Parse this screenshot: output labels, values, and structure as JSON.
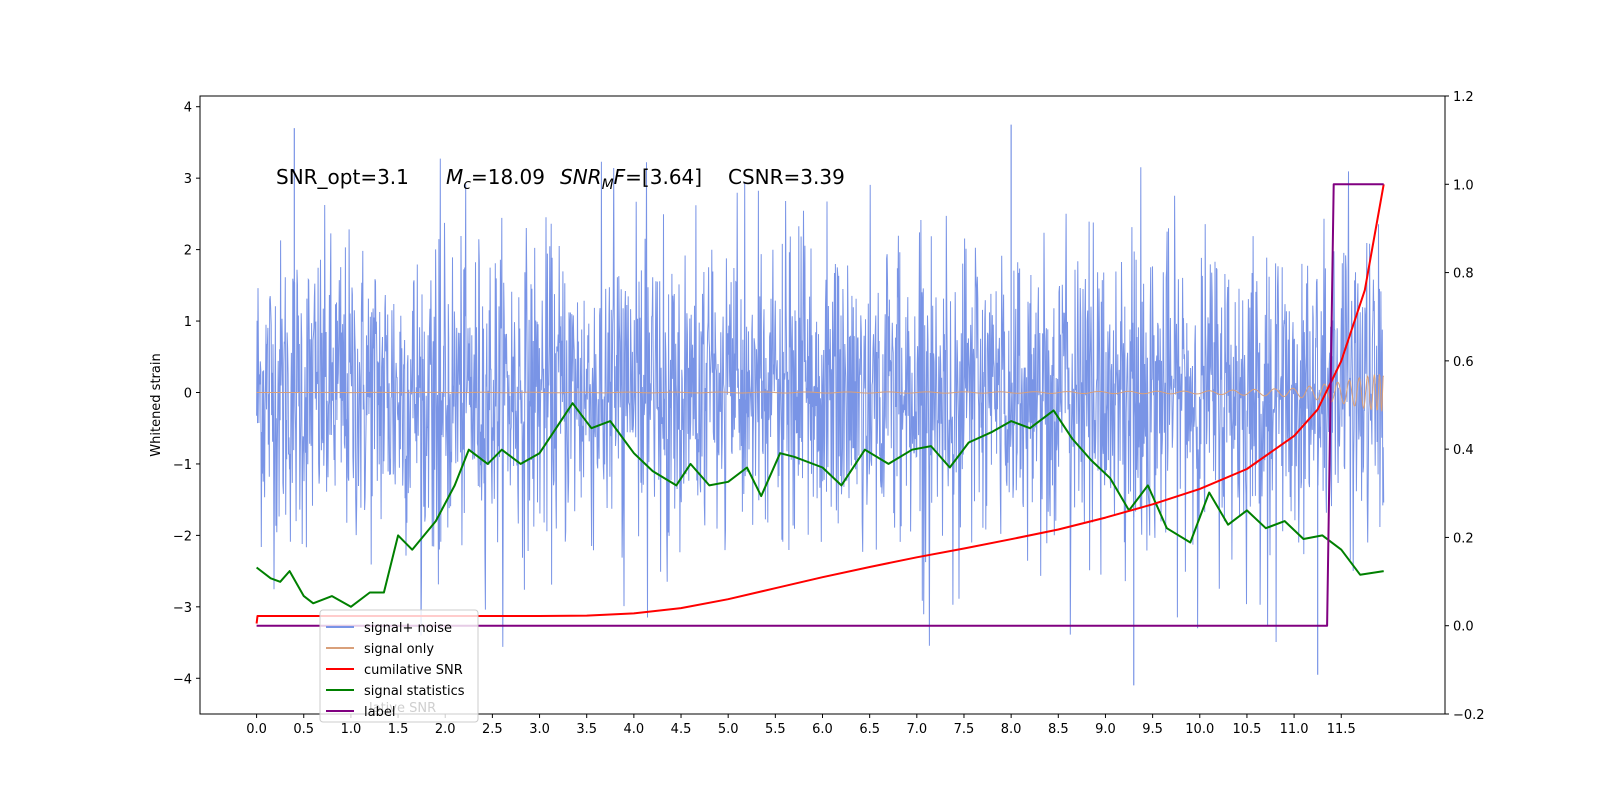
{
  "chart_data": {
    "type": "line",
    "title": "",
    "ylabel": "Whitened strain",
    "xlabel": "",
    "xlim": [
      -0.6,
      12.6
    ],
    "ylim": [
      -4.5,
      4.15
    ],
    "y2lim": [
      -0.2,
      1.2
    ],
    "grid": false,
    "legend_placement": "lower-left",
    "x_ticks": [
      "0.0",
      "0.5",
      "1.0",
      "1.5",
      "2.0",
      "2.5",
      "3.0",
      "3.5",
      "4.0",
      "4.5",
      "5.0",
      "5.5",
      "6.0",
      "6.5",
      "7.0",
      "7.5",
      "8.0",
      "8.5",
      "9.0",
      "9.5",
      "10.0",
      "10.5",
      "11.0",
      "11.5"
    ],
    "y_ticks": [
      "4",
      "3",
      "2",
      "1",
      "0",
      "−1",
      "−2",
      "−3",
      "−4"
    ],
    "y2_ticks": [
      "1.2",
      "1.0",
      "0.8",
      "0.6",
      "0.4",
      "0.2",
      "0.0",
      "−0.2"
    ],
    "annotations": {
      "snr_opt": "SNR_opt=3.1",
      "mc_symbol": "M",
      "mc_sub": "c",
      "mc_value": "=18.09",
      "snrmf_symbol": "SNR",
      "snrmf_sub": "M",
      "snrmf_f": "F",
      "snrmf_value": "=[3.64]",
      "csnr": "CSNR=3.39"
    },
    "series": [
      {
        "name": "signal+ noise",
        "color": "#7994e6",
        "axis": "left",
        "description_values": {
          "x_start": 0.0,
          "x_end": 11.95,
          "typical_envelope": [
            -2.2,
            2.6
          ],
          "peaks": [
            [
              0.4,
              3.7
            ],
            [
              8.0,
              3.75
            ],
            [
              9.3,
              -4.1
            ],
            [
              11.25,
              -3.95
            ]
          ]
        }
      },
      {
        "name": "signal only",
        "color": "#d9a07a",
        "axis": "left",
        "x_start": 0.0,
        "x_end": 11.95,
        "amplitude": [
          [
            0.0,
            0.0
          ],
          [
            8.0,
            0.01
          ],
          [
            10.0,
            0.02
          ],
          [
            11.0,
            0.06
          ],
          [
            11.5,
            0.15
          ],
          [
            11.95,
            0.28
          ]
        ]
      },
      {
        "name": "cumilative SNR",
        "color": "#ff0000",
        "axis": "right",
        "x": [
          0.0,
          0.01,
          1.0,
          2.0,
          3.0,
          3.5,
          4.0,
          4.5,
          5.0,
          5.5,
          6.0,
          6.5,
          7.0,
          7.5,
          8.0,
          8.5,
          9.0,
          9.5,
          10.0,
          10.5,
          11.0,
          11.25,
          11.5,
          11.75,
          11.95
        ],
        "values": [
          0.005,
          0.022,
          0.022,
          0.022,
          0.022,
          0.023,
          0.028,
          0.04,
          0.06,
          0.085,
          0.11,
          0.133,
          0.155,
          0.175,
          0.196,
          0.218,
          0.245,
          0.275,
          0.31,
          0.355,
          0.43,
          0.49,
          0.6,
          0.76,
          1.0
        ]
      },
      {
        "name": "signal statistics",
        "color": "#008000",
        "axis": "left",
        "x": [
          0.0,
          0.15,
          0.25,
          0.35,
          0.5,
          0.6,
          0.8,
          1.0,
          1.2,
          1.35,
          1.5,
          1.65,
          1.9,
          2.1,
          2.25,
          2.45,
          2.6,
          2.8,
          3.0,
          3.15,
          3.35,
          3.55,
          3.75,
          4.0,
          4.2,
          4.45,
          4.6,
          4.8,
          5.0,
          5.2,
          5.35,
          5.55,
          5.7,
          6.0,
          6.2,
          6.45,
          6.7,
          6.95,
          7.15,
          7.35,
          7.55,
          7.8,
          8.0,
          8.2,
          8.45,
          8.65,
          8.85,
          9.05,
          9.25,
          9.45,
          9.65,
          9.9,
          10.1,
          10.3,
          10.5,
          10.7,
          10.9,
          11.1,
          11.3,
          11.5,
          11.7,
          11.95
        ],
        "values": [
          -2.45,
          -2.6,
          -2.65,
          -2.5,
          -2.85,
          -2.95,
          -2.85,
          -3.0,
          -2.8,
          -2.8,
          -2.0,
          -2.2,
          -1.8,
          -1.3,
          -0.8,
          -1.0,
          -0.8,
          -1.0,
          -0.85,
          -0.55,
          -0.15,
          -0.5,
          -0.4,
          -0.85,
          -1.1,
          -1.3,
          -1.0,
          -1.3,
          -1.25,
          -1.05,
          -1.45,
          -0.85,
          -0.9,
          -1.05,
          -1.3,
          -0.8,
          -1.0,
          -0.8,
          -0.75,
          -1.05,
          -0.7,
          -0.55,
          -0.4,
          -0.5,
          -0.25,
          -0.65,
          -0.95,
          -1.2,
          -1.65,
          -1.3,
          -1.9,
          -2.1,
          -1.4,
          -1.85,
          -1.65,
          -1.9,
          -1.8,
          -2.05,
          -2.0,
          -2.2,
          -2.55,
          -2.5
        ]
      },
      {
        "name": "label",
        "color": "#800080",
        "axis": "right",
        "x": [
          0.0,
          11.35,
          11.42,
          11.95
        ],
        "values": [
          0.0,
          0.0,
          1.0,
          1.0
        ]
      }
    ],
    "legend": {
      "entries": [
        "signal+ noise",
        "signal only",
        "cumilative SNR",
        "signal statistics",
        "label"
      ],
      "ghost_text": "lative SNR"
    }
  }
}
